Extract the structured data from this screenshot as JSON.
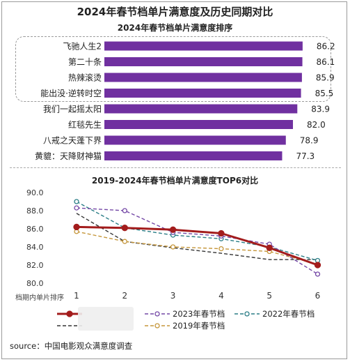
{
  "title": "2024年春节档单片满意度及历史同期对比",
  "source": "source：中国电影观众满意度调查",
  "colors": {
    "bar": "#7030a0",
    "s2024": "#a31c1c",
    "s2023": "#7448a6",
    "s2022": "#2a7d86",
    "s2020": "#333333",
    "s2019": "#c5963a"
  },
  "chart_data": [
    {
      "type": "bar",
      "orientation": "horizontal",
      "title": "2024年春节档单片满意度排序",
      "categories": [
        "飞驰人生2",
        "第二十条",
        "热辣滚烫",
        "能出没·逆转时空",
        "我们一起摇太阳",
        "红毯先生",
        "八戒之天蓬下界",
        "黄貔：天降财神猫"
      ],
      "values": [
        86.2,
        86.1,
        85.9,
        85.5,
        83.9,
        82.0,
        78.9,
        77.3
      ],
      "highlighted_top": 4
    },
    {
      "type": "line",
      "title": "2019-2024年春节档单片满意度TOP6对比",
      "xlabel": "档期内单片排序",
      "x": [
        1,
        2,
        3,
        4,
        5,
        6
      ],
      "ylim": [
        80.0,
        90.0
      ],
      "yticks": [
        "80.0",
        "82.0",
        "84.0",
        "86.0",
        "88.0",
        "90.0"
      ],
      "series": [
        {
          "name": "",
          "values": [
            86.2,
            86.1,
            85.9,
            85.5,
            83.9,
            82.0
          ]
        },
        {
          "name": "2023年春节档",
          "values": [
            88.3,
            88.0,
            85.6,
            85.2,
            84.3,
            81.0
          ]
        },
        {
          "name": "2022年春节档",
          "values": [
            89.0,
            86.1,
            85.3,
            84.9,
            84.0,
            82.5
          ]
        },
        {
          "name": "",
          "values": [
            87.7,
            84.6,
            83.9,
            83.3,
            82.6,
            82.6
          ]
        },
        {
          "name": "2019年春节档",
          "values": [
            85.7,
            84.6,
            84.0,
            83.8,
            83.5,
            82.1
          ]
        }
      ]
    }
  ]
}
